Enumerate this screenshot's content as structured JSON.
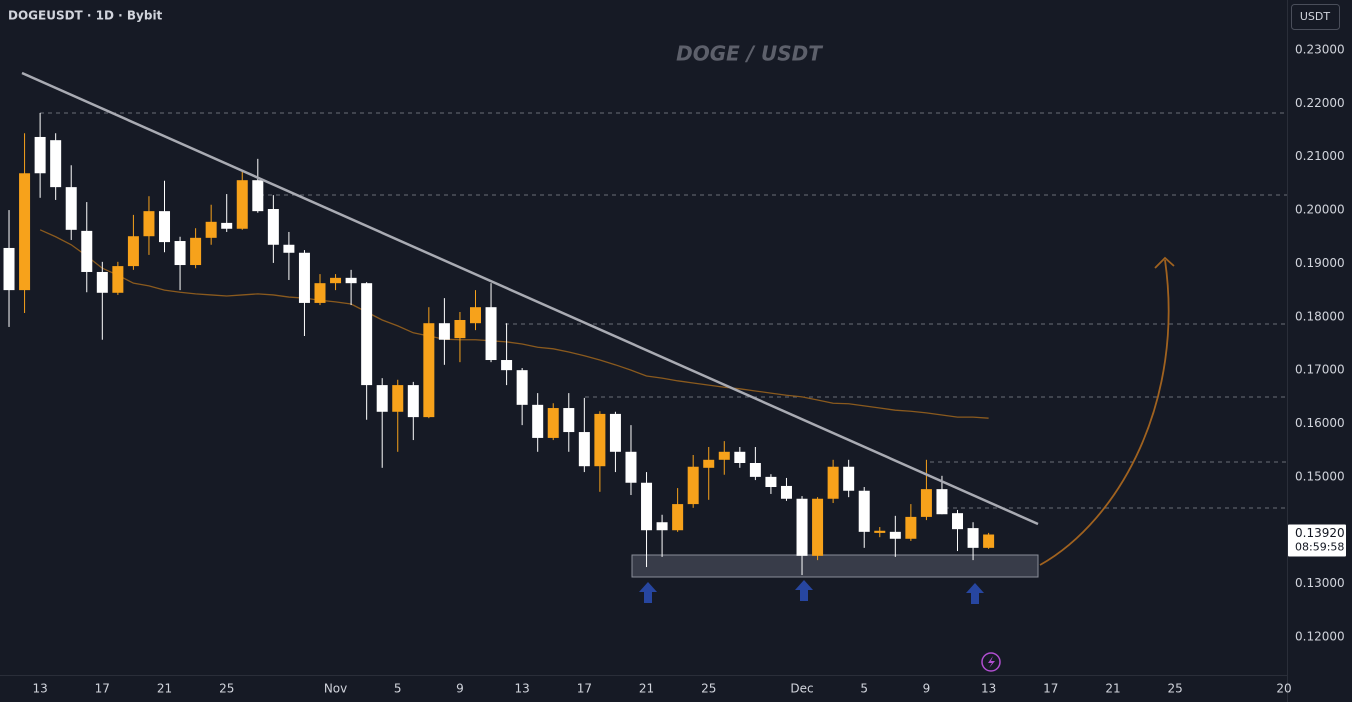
{
  "chart_data": {
    "type": "candlestick",
    "title": "DOGEUSDT · 1D · Bybit",
    "watermark": "DOGE / USDT",
    "currency": "USDT",
    "open": [
      0.1929,
      0.185,
      0.2137,
      0.2131,
      0.2043,
      0.1961,
      0.1884,
      0.1845,
      0.1895,
      0.1951,
      0.1998,
      0.1942,
      0.1897,
      0.1948,
      0.1976,
      0.1965,
      0.2056,
      0.2002,
      0.1935,
      0.192,
      0.1826,
      0.1863,
      0.1873,
      0.1863,
      0.1672,
      0.1622,
      0.1672,
      0.1612,
      0.1788,
      0.176,
      0.1788,
      0.1818,
      0.1719,
      0.17,
      0.1635,
      0.1573,
      0.1629,
      0.1584,
      0.152,
      0.1618,
      0.1547,
      0.1489,
      0.1415,
      0.14,
      0.1449,
      0.1517,
      0.1532,
      0.1547,
      0.1526,
      0.15,
      0.1483,
      0.1459,
      0.1352,
      0.1459,
      0.1519,
      0.1474,
      0.1395,
      0.1397,
      0.1384,
      0.1425,
      0.1477,
      0.1432,
      0.1404,
      0.1367
    ],
    "high": [
      0.2,
      0.2144,
      0.2182,
      0.2144,
      0.2084,
      0.2015,
      0.1903,
      0.1903,
      0.1991,
      0.2026,
      0.2055,
      0.195,
      0.1966,
      0.201,
      0.203,
      0.2075,
      0.2096,
      0.2028,
      0.1959,
      0.1925,
      0.188,
      0.188,
      0.1888,
      0.1865,
      0.1685,
      0.1682,
      0.1678,
      0.1818,
      0.1835,
      0.1809,
      0.185,
      0.1863,
      0.1788,
      0.1704,
      0.1657,
      0.1638,
      0.1657,
      0.1648,
      0.1623,
      0.1622,
      0.1597,
      0.1509,
      0.1429,
      0.1479,
      0.1541,
      0.1556,
      0.1567,
      0.1556,
      0.1556,
      0.1505,
      0.1498,
      0.1464,
      0.1462,
      0.1532,
      0.1532,
      0.1481,
      0.1406,
      0.1427,
      0.1449,
      0.1532,
      0.1502,
      0.1438,
      0.1415,
      0.1395
    ],
    "low": [
      0.1781,
      0.1807,
      0.2023,
      0.2019,
      0.1944,
      0.1846,
      0.1757,
      0.1841,
      0.1888,
      0.1916,
      0.1921,
      0.185,
      0.1891,
      0.1935,
      0.1959,
      0.1963,
      0.1995,
      0.1901,
      0.1869,
      0.1764,
      0.1822,
      0.185,
      0.1822,
      0.1607,
      0.1517,
      0.1547,
      0.1569,
      0.161,
      0.171,
      0.1715,
      0.1775,
      0.1715,
      0.1672,
      0.1597,
      0.1547,
      0.1569,
      0.1547,
      0.1509,
      0.1472,
      0.1509,
      0.1466,
      0.1331,
      0.135,
      0.1397,
      0.1442,
      0.1457,
      0.1504,
      0.1517,
      0.1494,
      0.1468,
      0.1455,
      0.1316,
      0.1344,
      0.1451,
      0.1462,
      0.1367,
      0.1387,
      0.135,
      0.138,
      0.1419,
      0.143,
      0.1361,
      0.1344,
      0.1365
    ],
    "close": [
      0.185,
      0.2069,
      0.2069,
      0.2043,
      0.1963,
      0.1884,
      0.1845,
      0.1895,
      0.1951,
      0.1998,
      0.194,
      0.1897,
      0.1948,
      0.1978,
      0.1965,
      0.2056,
      0.1998,
      0.1935,
      0.192,
      0.1826,
      0.1863,
      0.1873,
      0.1863,
      0.1672,
      0.1622,
      0.1672,
      0.1612,
      0.1788,
      0.1757,
      0.1794,
      0.1818,
      0.1719,
      0.17,
      0.1635,
      0.1573,
      0.1629,
      0.1584,
      0.152,
      0.1618,
      0.1547,
      0.1489,
      0.14,
      0.14,
      0.1449,
      0.1519,
      0.1532,
      0.1547,
      0.1526,
      0.15,
      0.1481,
      0.1459,
      0.1352,
      0.1459,
      0.1519,
      0.1474,
      0.1397,
      0.1399,
      0.1384,
      0.1425,
      0.1477,
      0.143,
      0.1402,
      0.1367,
      0.1392
    ],
    "up_color": "#f7a21b",
    "down_color": "#ffffff",
    "ma": {
      "color": "#8a5a1e",
      "values": [
        null,
        null,
        0.1963,
        0.195,
        0.1935,
        0.1914,
        0.1891,
        0.1878,
        0.1863,
        0.1858,
        0.185,
        0.1846,
        0.1843,
        0.1841,
        0.1839,
        0.1841,
        0.1843,
        0.1841,
        0.1837,
        0.1835,
        0.1831,
        0.1828,
        0.1824,
        0.1809,
        0.1794,
        0.1783,
        0.177,
        0.1764,
        0.1758,
        0.1757,
        0.1757,
        0.1755,
        0.1753,
        0.1749,
        0.1743,
        0.174,
        0.1734,
        0.1727,
        0.1719,
        0.171,
        0.17,
        0.1689,
        0.1685,
        0.168,
        0.1676,
        0.1672,
        0.1668,
        0.1665,
        0.1661,
        0.1657,
        0.1653,
        0.165,
        0.1644,
        0.1638,
        0.1637,
        0.1633,
        0.1629,
        0.1625,
        0.1623,
        0.162,
        0.1616,
        0.1612,
        0.1612,
        0.161
      ]
    },
    "last_price": {
      "value": 0.1392,
      "label": "0.13920"
    },
    "countdown": "08:59:58",
    "ylim": [
      0.11287,
      0.23937
    ],
    "yticks": [
      {
        "value": 0.12,
        "label": "0.12000"
      },
      {
        "value": 0.13,
        "label": "0.13000"
      },
      {
        "value": 0.14,
        "label": "0.14000"
      },
      {
        "value": 0.15,
        "label": "0.15000"
      },
      {
        "value": 0.16,
        "label": "0.16000"
      },
      {
        "value": 0.17,
        "label": "0.17000"
      },
      {
        "value": 0.18,
        "label": "0.18000"
      },
      {
        "value": 0.19,
        "label": "0.19000"
      },
      {
        "value": 0.2,
        "label": "0.20000"
      },
      {
        "value": 0.21,
        "label": "0.21000"
      },
      {
        "value": 0.22,
        "label": "0.22000"
      },
      {
        "value": 0.23,
        "label": "0.23000"
      }
    ],
    "xlim": [
      -0.58,
      82.19
    ],
    "xticks": [
      {
        "value": 2,
        "label": "13"
      },
      {
        "value": 6,
        "label": "17"
      },
      {
        "value": 10,
        "label": "21"
      },
      {
        "value": 14,
        "label": "25"
      },
      {
        "value": 21,
        "label": "Nov"
      },
      {
        "value": 25,
        "label": "5"
      },
      {
        "value": 29,
        "label": "9"
      },
      {
        "value": 33,
        "label": "13"
      },
      {
        "value": 37,
        "label": "17"
      },
      {
        "value": 41,
        "label": "21"
      },
      {
        "value": 45,
        "label": "25"
      },
      {
        "value": 51,
        "label": "Dec"
      },
      {
        "value": 55,
        "label": "5"
      },
      {
        "value": 59,
        "label": "9"
      },
      {
        "value": 63,
        "label": "13"
      },
      {
        "value": 67,
        "label": "17"
      },
      {
        "value": 71,
        "label": "21"
      },
      {
        "value": 75,
        "label": "25"
      },
      {
        "value": 82,
        "label": "20"
      }
    ]
  }
}
